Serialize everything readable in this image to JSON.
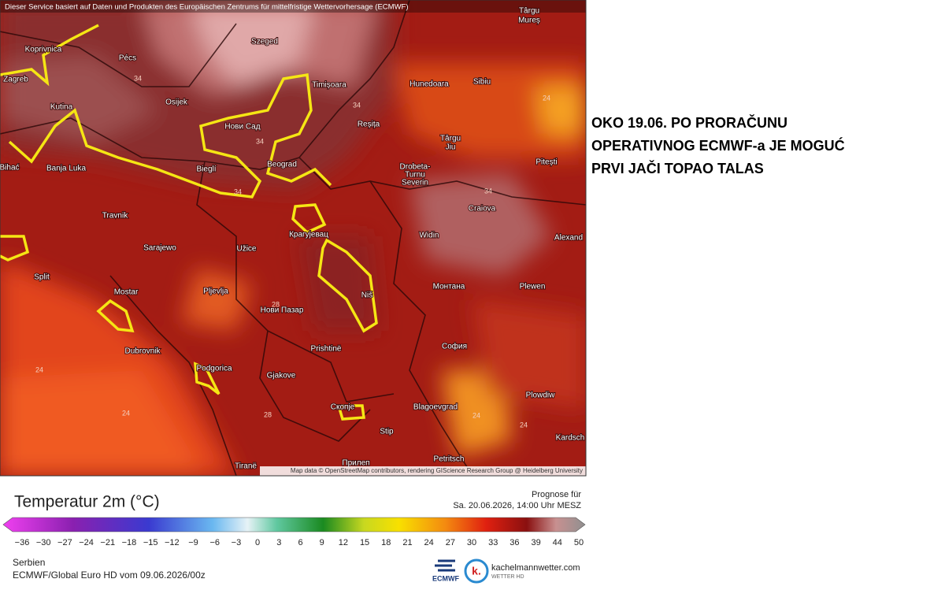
{
  "header": {
    "source_note": "Dieser Service basiert auf Daten und Produkten des Europäischen Zentrums für mittelfristige Wettervorhersage (ECMWF)"
  },
  "map": {
    "cities": [
      "Târgu",
      "Mureș",
      "Szeged",
      "Pécs",
      "Koprivnica",
      "Zagreb",
      "Timișoara",
      "Hunedoara",
      "Sibiu",
      "Osijek",
      "Kutina",
      "Нови Сад",
      "Reșița",
      "Târgu",
      "Jiu",
      "Pitești",
      "Banja Luka",
      "Bihać",
      "Bieglí",
      "Beograd",
      "Drobeta-",
      "Turnu",
      "Severin",
      "Craiova",
      "Travnik",
      "Крагујевац",
      "Widin",
      "Alexand",
      "Sarajewo",
      "Užice",
      "Split",
      "Mostar",
      "Pljevlja",
      "Монтана",
      "Plewen",
      "Niš",
      "Нови Пазар",
      "Dubrovnik",
      "Prishtinë",
      "София",
      "Podgorica",
      "Gjakove",
      "Plowdiw",
      "Скопје",
      "Blagoevgrad",
      "Stip",
      "Kardsch",
      "Petritsch",
      "Tiranë",
      "Прилеп"
    ],
    "contour_labels": [
      "34",
      "34",
      "34",
      "34",
      "34",
      "24",
      "24",
      "24",
      "28",
      "28",
      "24",
      "24"
    ],
    "attribution": "Map data © OpenStreetMap contributors, rendering GIScience Research Group @ Heidelberg University"
  },
  "annotation": {
    "lines": [
      "OKO 19.06. PO PRORAČUNU",
      "OPERATIVNOG ECMWF-a JE MOGUĆ",
      "PRVI JAČI TOPAO TALAS"
    ]
  },
  "legend": {
    "title": "Temperatur 2m (°C)",
    "forecast_label": "Prognose für",
    "forecast_time": "Sa. 20.06.2026, 14:00 Uhr MESZ",
    "ticks": [
      "−36",
      "−30",
      "−27",
      "−24",
      "−21",
      "−18",
      "−15",
      "−12",
      "−9",
      "−6",
      "−3",
      "0",
      "3",
      "6",
      "9",
      "12",
      "15",
      "18",
      "21",
      "24",
      "27",
      "30",
      "33",
      "36",
      "39",
      "44",
      "50"
    ]
  },
  "footer": {
    "region": "Serbien",
    "model_run": "ECMWF/Global Euro HD vom  09.06.2026/00z",
    "ecmwf_logo": "ECMWF",
    "site": "kachelmannwetter.com",
    "site_sub": "WETTER HD"
  }
}
